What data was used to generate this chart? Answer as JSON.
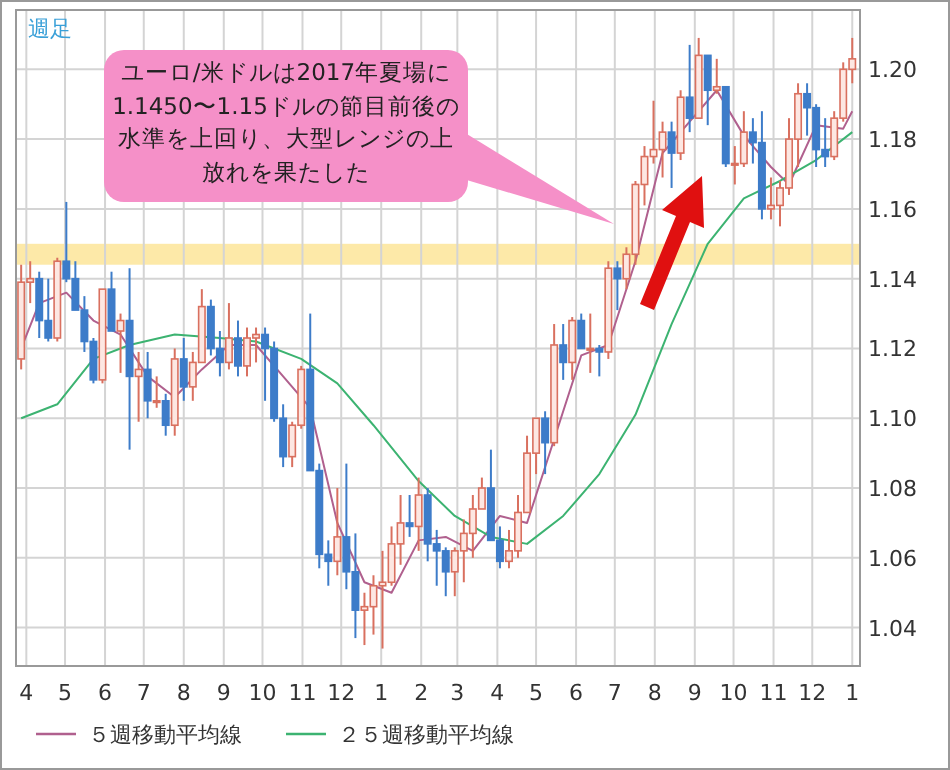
{
  "chart_data": {
    "type": "candlestick",
    "title": "週足",
    "x": [
      "2016-03-28",
      "2016-04-04",
      "2016-04-11",
      "2016-04-18",
      "2016-04-25",
      "2016-05-02",
      "2016-05-09",
      "2016-05-16",
      "2016-05-23",
      "2016-05-30",
      "2016-06-06",
      "2016-06-13",
      "2016-06-20",
      "2016-06-27",
      "2016-07-04",
      "2016-07-11",
      "2016-07-18",
      "2016-07-25",
      "2016-08-01",
      "2016-08-08",
      "2016-08-15",
      "2016-08-22",
      "2016-08-29",
      "2016-09-05",
      "2016-09-12",
      "2016-09-19",
      "2016-09-26",
      "2016-10-03",
      "2016-10-10",
      "2016-10-17",
      "2016-10-24",
      "2016-10-31",
      "2016-11-07",
      "2016-11-14",
      "2016-11-21",
      "2016-11-28",
      "2016-12-05",
      "2016-12-12",
      "2016-12-19",
      "2016-12-26",
      "2017-01-02",
      "2017-01-09",
      "2017-01-16",
      "2017-01-23",
      "2017-01-30",
      "2017-02-06",
      "2017-02-13",
      "2017-02-20",
      "2017-02-27",
      "2017-03-06",
      "2017-03-13",
      "2017-03-20",
      "2017-03-27",
      "2017-04-03",
      "2017-04-10",
      "2017-04-17",
      "2017-04-24",
      "2017-05-01",
      "2017-05-08",
      "2017-05-15",
      "2017-05-22",
      "2017-05-29",
      "2017-06-05",
      "2017-06-12",
      "2017-06-19",
      "2017-06-26",
      "2017-07-03",
      "2017-07-10",
      "2017-07-17",
      "2017-07-24",
      "2017-07-31",
      "2017-08-07",
      "2017-08-14",
      "2017-08-21",
      "2017-08-28",
      "2017-09-04",
      "2017-09-11",
      "2017-09-18",
      "2017-09-25",
      "2017-10-02",
      "2017-10-09",
      "2017-10-16",
      "2017-10-23",
      "2017-10-30",
      "2017-11-06",
      "2017-11-13",
      "2017-11-20",
      "2017-11-27",
      "2017-12-04",
      "2017-12-11",
      "2017-12-18",
      "2017-12-25",
      "2018-01-01"
    ],
    "ohlc": [
      [
        1.117,
        1.144,
        1.114,
        1.139
      ],
      [
        1.139,
        1.145,
        1.133,
        1.14
      ],
      [
        1.14,
        1.142,
        1.123,
        1.128
      ],
      [
        1.128,
        1.14,
        1.122,
        1.123
      ],
      [
        1.123,
        1.146,
        1.122,
        1.145
      ],
      [
        1.145,
        1.162,
        1.139,
        1.14
      ],
      [
        1.14,
        1.145,
        1.131,
        1.131
      ],
      [
        1.131,
        1.135,
        1.119,
        1.122
      ],
      [
        1.122,
        1.123,
        1.11,
        1.111
      ],
      [
        1.111,
        1.137,
        1.11,
        1.137
      ],
      [
        1.137,
        1.142,
        1.125,
        1.125
      ],
      [
        1.125,
        1.13,
        1.113,
        1.128
      ],
      [
        1.128,
        1.143,
        1.091,
        1.112
      ],
      [
        1.112,
        1.119,
        1.099,
        1.114
      ],
      [
        1.114,
        1.119,
        1.1,
        1.105
      ],
      [
        1.105,
        1.112,
        1.103,
        1.105
      ],
      [
        1.105,
        1.107,
        1.095,
        1.098
      ],
      [
        1.098,
        1.12,
        1.095,
        1.117
      ],
      [
        1.117,
        1.123,
        1.105,
        1.109
      ],
      [
        1.109,
        1.119,
        1.105,
        1.116
      ],
      [
        1.116,
        1.137,
        1.116,
        1.132
      ],
      [
        1.132,
        1.134,
        1.118,
        1.12
      ],
      [
        1.12,
        1.125,
        1.112,
        1.116
      ],
      [
        1.116,
        1.133,
        1.114,
        1.123
      ],
      [
        1.123,
        1.128,
        1.112,
        1.115
      ],
      [
        1.115,
        1.126,
        1.112,
        1.123
      ],
      [
        1.123,
        1.126,
        1.116,
        1.124
      ],
      [
        1.124,
        1.126,
        1.105,
        1.12
      ],
      [
        1.12,
        1.122,
        1.099,
        1.1
      ],
      [
        1.1,
        1.104,
        1.086,
        1.089
      ],
      [
        1.089,
        1.099,
        1.086,
        1.098
      ],
      [
        1.098,
        1.115,
        1.097,
        1.114
      ],
      [
        1.114,
        1.13,
        1.085,
        1.085
      ],
      [
        1.085,
        1.087,
        1.057,
        1.061
      ],
      [
        1.061,
        1.065,
        1.052,
        1.059
      ],
      [
        1.059,
        1.08,
        1.055,
        1.066
      ],
      [
        1.066,
        1.087,
        1.051,
        1.056
      ],
      [
        1.056,
        1.067,
        1.037,
        1.045
      ],
      [
        1.045,
        1.05,
        1.035,
        1.046
      ],
      [
        1.046,
        1.055,
        1.038,
        1.052
      ],
      [
        1.052,
        1.062,
        1.034,
        1.053
      ],
      [
        1.053,
        1.069,
        1.052,
        1.064
      ],
      [
        1.064,
        1.078,
        1.058,
        1.07
      ],
      [
        1.07,
        1.078,
        1.066,
        1.069
      ],
      [
        1.069,
        1.083,
        1.062,
        1.078
      ],
      [
        1.078,
        1.08,
        1.059,
        1.064
      ],
      [
        1.064,
        1.068,
        1.052,
        1.062
      ],
      [
        1.062,
        1.063,
        1.049,
        1.056
      ],
      [
        1.056,
        1.063,
        1.049,
        1.062
      ],
      [
        1.062,
        1.071,
        1.053,
        1.067
      ],
      [
        1.067,
        1.078,
        1.06,
        1.074
      ],
      [
        1.074,
        1.083,
        1.074,
        1.08
      ],
      [
        1.08,
        1.091,
        1.065,
        1.065
      ],
      [
        1.065,
        1.069,
        1.057,
        1.059
      ],
      [
        1.059,
        1.068,
        1.057,
        1.062
      ],
      [
        1.062,
        1.078,
        1.06,
        1.073
      ],
      [
        1.073,
        1.095,
        1.073,
        1.09
      ],
      [
        1.09,
        1.1,
        1.084,
        1.1
      ],
      [
        1.1,
        1.102,
        1.084,
        1.093
      ],
      [
        1.093,
        1.127,
        1.092,
        1.121
      ],
      [
        1.121,
        1.127,
        1.111,
        1.116
      ],
      [
        1.116,
        1.129,
        1.111,
        1.128
      ],
      [
        1.128,
        1.13,
        1.12,
        1.12
      ],
      [
        1.12,
        1.13,
        1.113,
        1.12
      ],
      [
        1.12,
        1.121,
        1.112,
        1.119
      ],
      [
        1.119,
        1.145,
        1.117,
        1.143
      ],
      [
        1.143,
        1.145,
        1.131,
        1.14
      ],
      [
        1.14,
        1.149,
        1.137,
        1.147
      ],
      [
        1.147,
        1.168,
        1.144,
        1.167
      ],
      [
        1.167,
        1.178,
        1.161,
        1.175
      ],
      [
        1.175,
        1.191,
        1.173,
        1.177
      ],
      [
        1.177,
        1.185,
        1.169,
        1.182
      ],
      [
        1.182,
        1.185,
        1.166,
        1.176
      ],
      [
        1.176,
        1.194,
        1.174,
        1.192
      ],
      [
        1.192,
        1.207,
        1.182,
        1.186
      ],
      [
        1.186,
        1.209,
        1.186,
        1.204
      ],
      [
        1.204,
        1.204,
        1.184,
        1.194
      ],
      [
        1.194,
        1.203,
        1.193,
        1.195
      ],
      [
        1.195,
        1.195,
        1.172,
        1.173
      ],
      [
        1.173,
        1.178,
        1.167,
        1.173
      ],
      [
        1.173,
        1.188,
        1.172,
        1.182
      ],
      [
        1.182,
        1.186,
        1.173,
        1.179
      ],
      [
        1.179,
        1.188,
        1.157,
        1.16
      ],
      [
        1.16,
        1.169,
        1.157,
        1.161
      ],
      [
        1.161,
        1.168,
        1.155,
        1.166
      ],
      [
        1.166,
        1.186,
        1.164,
        1.18
      ],
      [
        1.18,
        1.196,
        1.172,
        1.193
      ],
      [
        1.193,
        1.196,
        1.181,
        1.189
      ],
      [
        1.189,
        1.19,
        1.172,
        1.177
      ],
      [
        1.177,
        1.186,
        1.172,
        1.175
      ],
      [
        1.175,
        1.188,
        1.174,
        1.186
      ],
      [
        1.186,
        1.202,
        1.185,
        1.2
      ],
      [
        1.2,
        1.209,
        1.196,
        1.203
      ]
    ],
    "series": [
      {
        "type": "line",
        "name": "５週移動平均線",
        "color": "#b0608e",
        "x": [
          "2016-03-28",
          "2016-04-11",
          "2016-05-02",
          "2016-05-23",
          "2016-06-13",
          "2016-07-04",
          "2016-07-25",
          "2016-08-15",
          "2016-09-05",
          "2016-09-26",
          "2016-10-17",
          "2016-11-07",
          "2016-11-28",
          "2016-12-19",
          "2017-01-09",
          "2017-01-30",
          "2017-02-20",
          "2017-03-13",
          "2017-04-03",
          "2017-04-24",
          "2017-05-15",
          "2017-06-05",
          "2017-06-26",
          "2017-07-17",
          "2017-08-07",
          "2017-08-28",
          "2017-09-18",
          "2017-10-09",
          "2017-10-30",
          "2017-11-13",
          "2017-12-04",
          "2017-12-25",
          "2018-01-01"
        ],
        "values": [
          1.12,
          1.133,
          1.136,
          1.128,
          1.124,
          1.112,
          1.106,
          1.114,
          1.121,
          1.121,
          1.112,
          1.103,
          1.07,
          1.053,
          1.05,
          1.065,
          1.066,
          1.062,
          1.072,
          1.07,
          1.094,
          1.118,
          1.121,
          1.145,
          1.176,
          1.185,
          1.194,
          1.181,
          1.172,
          1.167,
          1.184,
          1.183,
          1.188
        ]
      },
      {
        "type": "line",
        "name": "２５週移動平均線",
        "color": "#3cb371",
        "x": [
          "2016-03-28",
          "2016-04-25",
          "2016-05-23",
          "2016-06-20",
          "2016-07-25",
          "2016-08-29",
          "2016-09-26",
          "2016-10-31",
          "2016-11-28",
          "2016-12-26",
          "2017-01-30",
          "2017-02-27",
          "2017-03-27",
          "2017-04-24",
          "2017-05-22",
          "2017-06-19",
          "2017-07-17",
          "2017-08-14",
          "2017-09-11",
          "2017-10-09",
          "2017-11-06",
          "2017-12-04",
          "2018-01-01"
        ],
        "values": [
          1.1,
          1.104,
          1.117,
          1.121,
          1.124,
          1.123,
          1.122,
          1.117,
          1.11,
          1.098,
          1.082,
          1.072,
          1.066,
          1.064,
          1.072,
          1.084,
          1.101,
          1.127,
          1.15,
          1.163,
          1.168,
          1.174,
          1.182
        ]
      }
    ],
    "xlim": [
      "2016-03-24",
      "2018-01-07"
    ],
    "xticks": [
      {
        "value": "2016-04-01",
        "label": "4"
      },
      {
        "value": "2016-05-01",
        "label": "5"
      },
      {
        "value": "2016-06-01",
        "label": "6"
      },
      {
        "value": "2016-07-01",
        "label": "7"
      },
      {
        "value": "2016-08-01",
        "label": "8"
      },
      {
        "value": "2016-09-01",
        "label": "9"
      },
      {
        "value": "2016-10-01",
        "label": "10"
      },
      {
        "value": "2016-11-01",
        "label": "11"
      },
      {
        "value": "2016-12-01",
        "label": "12"
      },
      {
        "value": "2017-01-01",
        "label": "1"
      },
      {
        "value": "2017-02-01",
        "label": "2"
      },
      {
        "value": "2017-03-01",
        "label": "3"
      },
      {
        "value": "2017-04-01",
        "label": "4"
      },
      {
        "value": "2017-05-01",
        "label": "5"
      },
      {
        "value": "2017-06-01",
        "label": "6"
      },
      {
        "value": "2017-07-01",
        "label": "7"
      },
      {
        "value": "2017-08-01",
        "label": "8"
      },
      {
        "value": "2017-09-01",
        "label": "9"
      },
      {
        "value": "2017-10-01",
        "label": "10"
      },
      {
        "value": "2017-11-01",
        "label": "11"
      },
      {
        "value": "2017-12-01",
        "label": "12"
      },
      {
        "value": "2018-01-01",
        "label": "1"
      }
    ],
    "ylim": [
      1.029,
      1.217
    ],
    "yticks": [
      1.04,
      1.06,
      1.08,
      {
        "value": 1.1,
        "label": "1.10"
      },
      1.12,
      1.14,
      1.16,
      1.18,
      {
        "value": 1.2,
        "label": "1.20"
      }
    ],
    "grid": true,
    "legend": "bottom",
    "bands": [
      {
        "axis": "y",
        "from": 1.144,
        "to": 1.15,
        "color": "#fde9a8"
      }
    ],
    "annotations": [
      "ユーロ/米ドルは2017年夏場に1.1450〜1.15ドルの節目前後の水準を上回り、大型レンジの上放れを果たした"
    ]
  }
}
